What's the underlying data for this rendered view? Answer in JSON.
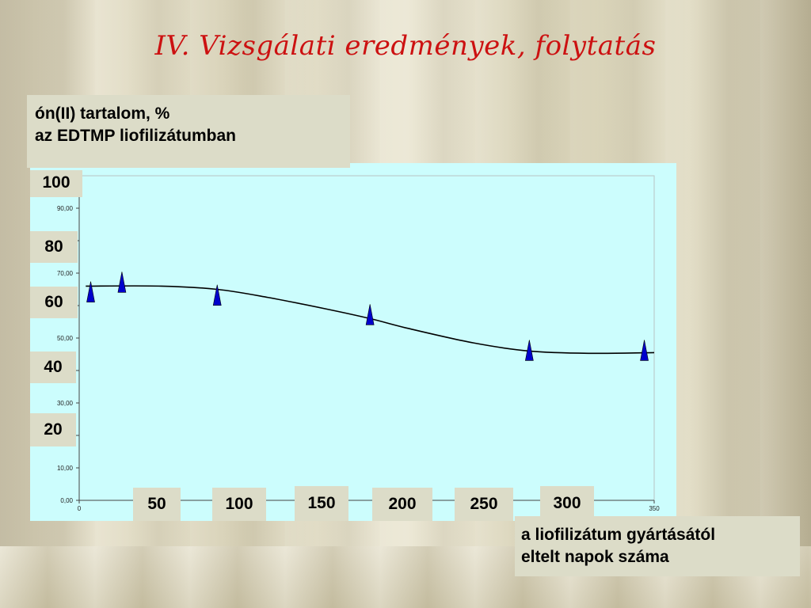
{
  "title": "IV. Vizsgálati eredmények, folytatás",
  "y_label_lines": [
    "ón(II) tartalom, %",
    "az EDTMP  liofilizátumban"
  ],
  "x_label_lines": [
    "a liofilizátum gyártásától",
    "eltelt napok száma"
  ],
  "y_overlay_ticks": [
    "100",
    "80",
    "60",
    "40",
    "20"
  ],
  "x_overlay_ticks": [
    "50",
    "100",
    "150",
    "200",
    "250",
    "300"
  ],
  "chart_data": {
    "type": "scatter",
    "xlim": [
      0,
      350
    ],
    "ylim": [
      0,
      100
    ],
    "y_ticks_small": [
      "0,00",
      "10,00",
      "20,00",
      "30,00",
      "40,00",
      "50,00",
      "60,00",
      "70,00",
      "80,00",
      "90,00",
      "100,00"
    ],
    "x_ticks_small": [
      "0",
      "350"
    ],
    "points": [
      {
        "x": 7,
        "y": 64
      },
      {
        "x": 26,
        "y": 67
      },
      {
        "x": 84,
        "y": 63
      },
      {
        "x": 177,
        "y": 57
      },
      {
        "x": 274,
        "y": 46
      },
      {
        "x": 344,
        "y": 46
      }
    ],
    "trend": [
      {
        "x": 4,
        "y": 66
      },
      {
        "x": 50,
        "y": 66
      },
      {
        "x": 84,
        "y": 65
      },
      {
        "x": 115,
        "y": 62.5
      },
      {
        "x": 150,
        "y": 59
      },
      {
        "x": 177,
        "y": 56
      },
      {
        "x": 200,
        "y": 53
      },
      {
        "x": 240,
        "y": 48.5
      },
      {
        "x": 274,
        "y": 46
      },
      {
        "x": 310,
        "y": 45.3
      },
      {
        "x": 350,
        "y": 45.5
      }
    ],
    "marker_color": "#0000cc",
    "line_color": "#000000",
    "plot_bg": "#ccfdfd"
  }
}
